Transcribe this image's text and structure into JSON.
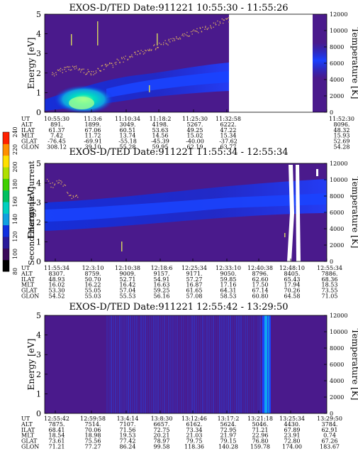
{
  "colors": {
    "background": "#4a1a8c",
    "colorbar": [
      "#000000",
      "#3a0a5a",
      "#2a1a9a",
      "#1030e0",
      "#10a0e0",
      "#00d0c0",
      "#00c060",
      "#40d000",
      "#b0e000",
      "#ffe000",
      "#ff9000",
      "#ff2000"
    ]
  },
  "colorbar": {
    "label": "Second Harmonic Current",
    "ticks": [
      "80",
      "100",
      "120",
      "140",
      "160",
      "180",
      "200",
      "220",
      "240"
    ]
  },
  "panels": [
    {
      "title": "EXOS-D/TED  Date:911221  10:55:30 - 11:55:26",
      "ylabel": "Energy [eV]",
      "y2label": "Temperature [K]",
      "yticks": [
        "0",
        "1",
        "2",
        "3",
        "4",
        "5"
      ],
      "y2ticks": [
        "0",
        "2000",
        "4000",
        "6000",
        "8000",
        "10000",
        "12000"
      ],
      "rowlabels": [
        "UT",
        "ALT",
        "ILAT",
        "MLT",
        "GLAT",
        "GLON"
      ],
      "columns": [
        [
          "10:55:30",
          "891.",
          "61.37",
          "7.42",
          "-76.45",
          "308.12"
        ],
        [
          "11:3:6",
          "1899.",
          "67.06",
          "11.72",
          "-69.91",
          "39.10"
        ],
        [
          "11:10:34",
          "3049.",
          "60.51",
          "13.74",
          "-55.18",
          "55.28"
        ],
        [
          "11:18:2",
          "4198.",
          "53.63",
          "14.56",
          "-45.39",
          "59.95"
        ],
        [
          "11:25:30",
          "5267.",
          "49.25",
          "15.02",
          "-40.00",
          "62.19"
        ],
        [
          "11:32:58",
          "6222.",
          "47.22",
          "15.34",
          "-37.62",
          "63.77"
        ],
        [
          "11:52:30",
          "8096.",
          "48.32",
          "15.93",
          "52.69",
          "54.28"
        ]
      ]
    },
    {
      "title": "EXOS-D/TED  Date:911221  11:55:34 - 12:55:34",
      "ylabel": "Energy [eV]",
      "y2label": "Temperature [K]",
      "yticks": [
        "0",
        "1",
        "2",
        "3",
        "4",
        "5"
      ],
      "y2ticks": [
        "0",
        "2000",
        "4000",
        "6000",
        "8000",
        "10000",
        "12000"
      ],
      "rowlabels": [
        "UT",
        "ALT",
        "ILAT",
        "MLT",
        "GLAT",
        "GLON"
      ],
      "columns": [
        [
          "11:55:34",
          "8307.",
          "48.93",
          "16.02",
          "53.30",
          "54.52"
        ],
        [
          "12:3:10",
          "8759.",
          "50.70",
          "16.22",
          "55.05",
          "55.03"
        ],
        [
          "12:10:38",
          "9009.",
          "52.71",
          "16.42",
          "57.04",
          "55.53"
        ],
        [
          "12:18:6",
          "9157.",
          "54.91",
          "16.63",
          "59.25",
          "56.16"
        ],
        [
          "12:25:34",
          "9171.",
          "57.27",
          "16.87",
          "61.65",
          "57.08"
        ],
        [
          "12:33:10",
          "9050.",
          "59.85",
          "17.16",
          "64.31",
          "58.53"
        ],
        [
          "12:40:38",
          "8796.",
          "62.60",
          "17.50",
          "67.14",
          "60.80"
        ],
        [
          "12:48:10",
          "8405.",
          "65.43",
          "17.94",
          "70.26",
          "64.58"
        ],
        [
          "12:55:34",
          "7886.",
          "68.36",
          "18.53",
          "73.55",
          "71.05"
        ]
      ]
    },
    {
      "title": "EXOS-D/TED  Date:911221  12:55:42 - 13:29:50",
      "ylabel": "Energy [eV]",
      "y2label": "Temperature [K]",
      "yticks": [
        "0",
        "1",
        "2",
        "3",
        "4",
        "5"
      ],
      "y2ticks": [
        "0",
        "2000",
        "4000",
        "6000",
        "8000",
        "10000",
        "12000"
      ],
      "rowlabels": [
        "UT",
        "ALT",
        "ILAT",
        "MLT",
        "GLAT",
        "GLON"
      ],
      "columns": [
        [
          "12:55:42",
          "7875.",
          "68.41",
          "18.54",
          "73.61",
          "71.21"
        ],
        [
          "12:59:58",
          "7514.",
          "70.06",
          "18.98",
          "75.56",
          "77.27"
        ],
        [
          "13:4:14",
          "7107.",
          "71.56",
          "19.53",
          "77.42",
          "86.24"
        ],
        [
          "13:8:30",
          "6657.",
          "72.75",
          "20.21",
          "78.97",
          "99.58"
        ],
        [
          "13:12:46",
          "6162.",
          "73.34",
          "21.03",
          "79.75",
          "118.36"
        ],
        [
          "13:17:2",
          "5624.",
          "72.95",
          "21.97",
          "79.15",
          "140.28"
        ],
        [
          "13:21:18",
          "5046.",
          "71.21",
          "22.96",
          "76.80",
          "159.78"
        ],
        [
          "13:25:34",
          "4430.",
          "67.89",
          "23.91",
          "72.80",
          "174.00"
        ],
        [
          "13:29:50",
          "3784.",
          "62.91",
          "0.74",
          "67.26",
          "183.67"
        ]
      ]
    }
  ]
}
